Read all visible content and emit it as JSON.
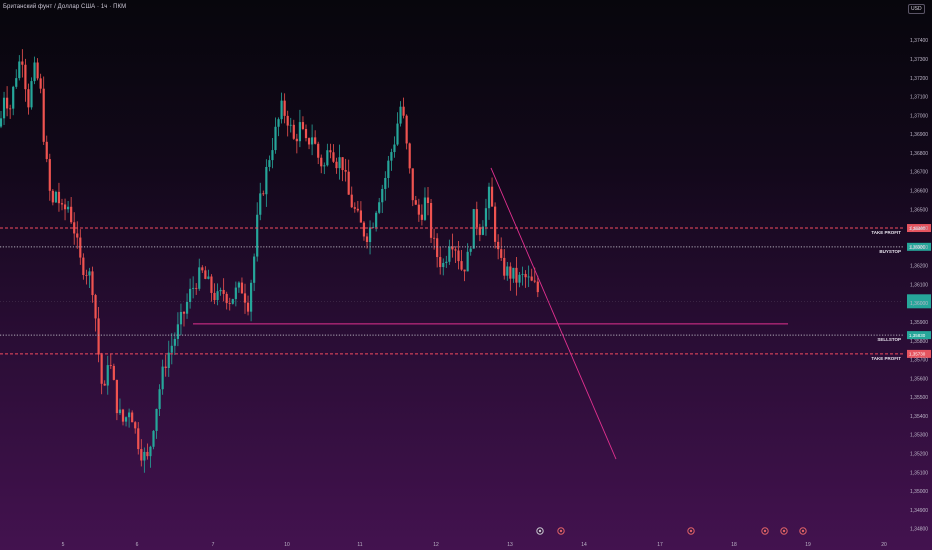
{
  "header": {
    "title": "Британский фунт / Доллар США · 1ч · ПКМ",
    "currency": "USD"
  },
  "colors": {
    "up": "#26a69a",
    "down": "#ef5350",
    "take_profit_line": "#f24a5e",
    "stop_line": "#b0aab8",
    "trendline": "#e0308f",
    "support_line": "#e0308f"
  },
  "chart_data": {
    "type": "candlestick",
    "title": "Британский фунт / Доллар США · 1ч · ПКМ",
    "ylim": [
      1.3475,
      1.3755
    ],
    "y_ticks": [
      "1,37400",
      "1,37300",
      "1,37200",
      "1,37100",
      "1,37000",
      "1,36900",
      "1,36800",
      "1,36700",
      "1,36600",
      "1,36500",
      "1,36400",
      "1,36300",
      "1,36200",
      "1,36100",
      "1,36000",
      "1,35900",
      "1,35800",
      "1,35700",
      "1,35600",
      "1,35500",
      "1,35400",
      "1,35300",
      "1,35200",
      "1,35100",
      "1,35000",
      "1,34900",
      "1,34800"
    ],
    "x_ticks": [
      "5",
      "6",
      "7",
      "10",
      "11",
      "12",
      "13",
      "14",
      "17",
      "18",
      "19",
      "20"
    ],
    "close_path": [
      [
        0,
        1.3694
      ],
      [
        4,
        1.3712
      ],
      [
        10,
        1.3704
      ],
      [
        16,
        1.3722
      ],
      [
        22,
        1.3733
      ],
      [
        28,
        1.3706
      ],
      [
        34,
        1.3724
      ],
      [
        40,
        1.3716
      ],
      [
        44,
        1.3688
      ],
      [
        48,
        1.3666
      ],
      [
        52,
        1.365
      ],
      [
        56,
        1.366
      ],
      [
        62,
        1.3648
      ],
      [
        68,
        1.3652
      ],
      [
        74,
        1.364
      ],
      [
        80,
        1.3622
      ],
      [
        86,
        1.3618
      ],
      [
        92,
        1.3612
      ],
      [
        96,
        1.359
      ],
      [
        100,
        1.3564
      ],
      [
        104,
        1.3548
      ],
      [
        108,
        1.3572
      ],
      [
        112,
        1.3562
      ],
      [
        118,
        1.3542
      ],
      [
        124,
        1.3536
      ],
      [
        130,
        1.3546
      ],
      [
        136,
        1.353
      ],
      [
        142,
        1.352
      ],
      [
        148,
        1.3516
      ],
      [
        154,
        1.3538
      ],
      [
        160,
        1.3556
      ],
      [
        166,
        1.357
      ],
      [
        172,
        1.3578
      ],
      [
        178,
        1.3586
      ],
      [
        184,
        1.3595
      ],
      [
        190,
        1.3605
      ],
      [
        196,
        1.3612
      ],
      [
        202,
        1.3616
      ],
      [
        206,
        1.3612
      ],
      [
        212,
        1.3606
      ],
      [
        218,
        1.3602
      ],
      [
        224,
        1.3606
      ],
      [
        230,
        1.3602
      ],
      [
        236,
        1.3606
      ],
      [
        242,
        1.3608
      ],
      [
        248,
        1.36
      ],
      [
        254,
        1.3624
      ],
      [
        258,
        1.3648
      ],
      [
        264,
        1.3664
      ],
      [
        270,
        1.368
      ],
      [
        276,
        1.3692
      ],
      [
        282,
        1.3704
      ],
      [
        288,
        1.3698
      ],
      [
        294,
        1.3686
      ],
      [
        300,
        1.3694
      ],
      [
        306,
        1.3684
      ],
      [
        312,
        1.369
      ],
      [
        318,
        1.3678
      ],
      [
        324,
        1.3672
      ],
      [
        330,
        1.3686
      ],
      [
        336,
        1.3676
      ],
      [
        342,
        1.3676
      ],
      [
        348,
        1.3658
      ],
      [
        354,
        1.365
      ],
      [
        360,
        1.3642
      ],
      [
        366,
        1.3636
      ],
      [
        372,
        1.3642
      ],
      [
        378,
        1.3656
      ],
      [
        384,
        1.3664
      ],
      [
        390,
        1.3678
      ],
      [
        396,
        1.369
      ],
      [
        400,
        1.3706
      ],
      [
        404,
        1.3696
      ],
      [
        408,
        1.3676
      ],
      [
        414,
        1.3652
      ],
      [
        420,
        1.3646
      ],
      [
        426,
        1.3656
      ],
      [
        432,
        1.3634
      ],
      [
        438,
        1.3624
      ],
      [
        444,
        1.362
      ],
      [
        450,
        1.3636
      ],
      [
        456,
        1.363
      ],
      [
        462,
        1.3618
      ],
      [
        468,
        1.3624
      ],
      [
        474,
        1.3646
      ],
      [
        480,
        1.364
      ],
      [
        486,
        1.365
      ],
      [
        490,
        1.366
      ],
      [
        494,
        1.364
      ],
      [
        500,
        1.362
      ],
      [
        506,
        1.3617
      ],
      [
        512,
        1.3615
      ],
      [
        518,
        1.3612
      ],
      [
        524,
        1.3614
      ],
      [
        530,
        1.3611
      ],
      [
        536,
        1.3608
      ],
      [
        540,
        1.3604
      ]
    ],
    "levels": [
      {
        "label": "TAKE PROFIT",
        "price": 1.364,
        "style": "dashed",
        "color": "#f24a5e",
        "tag_color": "#e5545f",
        "tag_text": "1,36400"
      },
      {
        "label": "BUYSTOP",
        "price": 1.363,
        "style": "dotted",
        "color": "#b0aab8",
        "tag_color": "#26a69a",
        "tag_text": "1,36300"
      },
      {
        "label": "SELLSTOP",
        "price": 1.3583,
        "style": "dotted",
        "color": "#b0aab8",
        "tag_color": "#26a69a",
        "tag_text": "1,35830"
      },
      {
        "label": "TAKE PROFIT",
        "price": 1.3573,
        "style": "dashed",
        "color": "#f24a5e",
        "tag_color": "#e5545f",
        "tag_text": "1,35730"
      }
    ],
    "current_price_tag": {
      "price": 1.3601,
      "color": "#26a69a"
    },
    "support_line": {
      "x0": 193,
      "x1": 788,
      "price": 1.3589
    },
    "trendline": {
      "x0": 491,
      "p0": 1.3672,
      "x1": 616,
      "p1": 1.3517
    },
    "event_markers": [
      {
        "x": 540,
        "color": "#c8c3d0"
      },
      {
        "x": 561,
        "color": "#e0606a"
      },
      {
        "x": 691,
        "color": "#e0606a"
      },
      {
        "x": 765,
        "color": "#e0606a"
      },
      {
        "x": 784,
        "color": "#e0606a"
      },
      {
        "x": 803,
        "color": "#e0606a"
      }
    ],
    "grid": false,
    "legend": "none"
  }
}
